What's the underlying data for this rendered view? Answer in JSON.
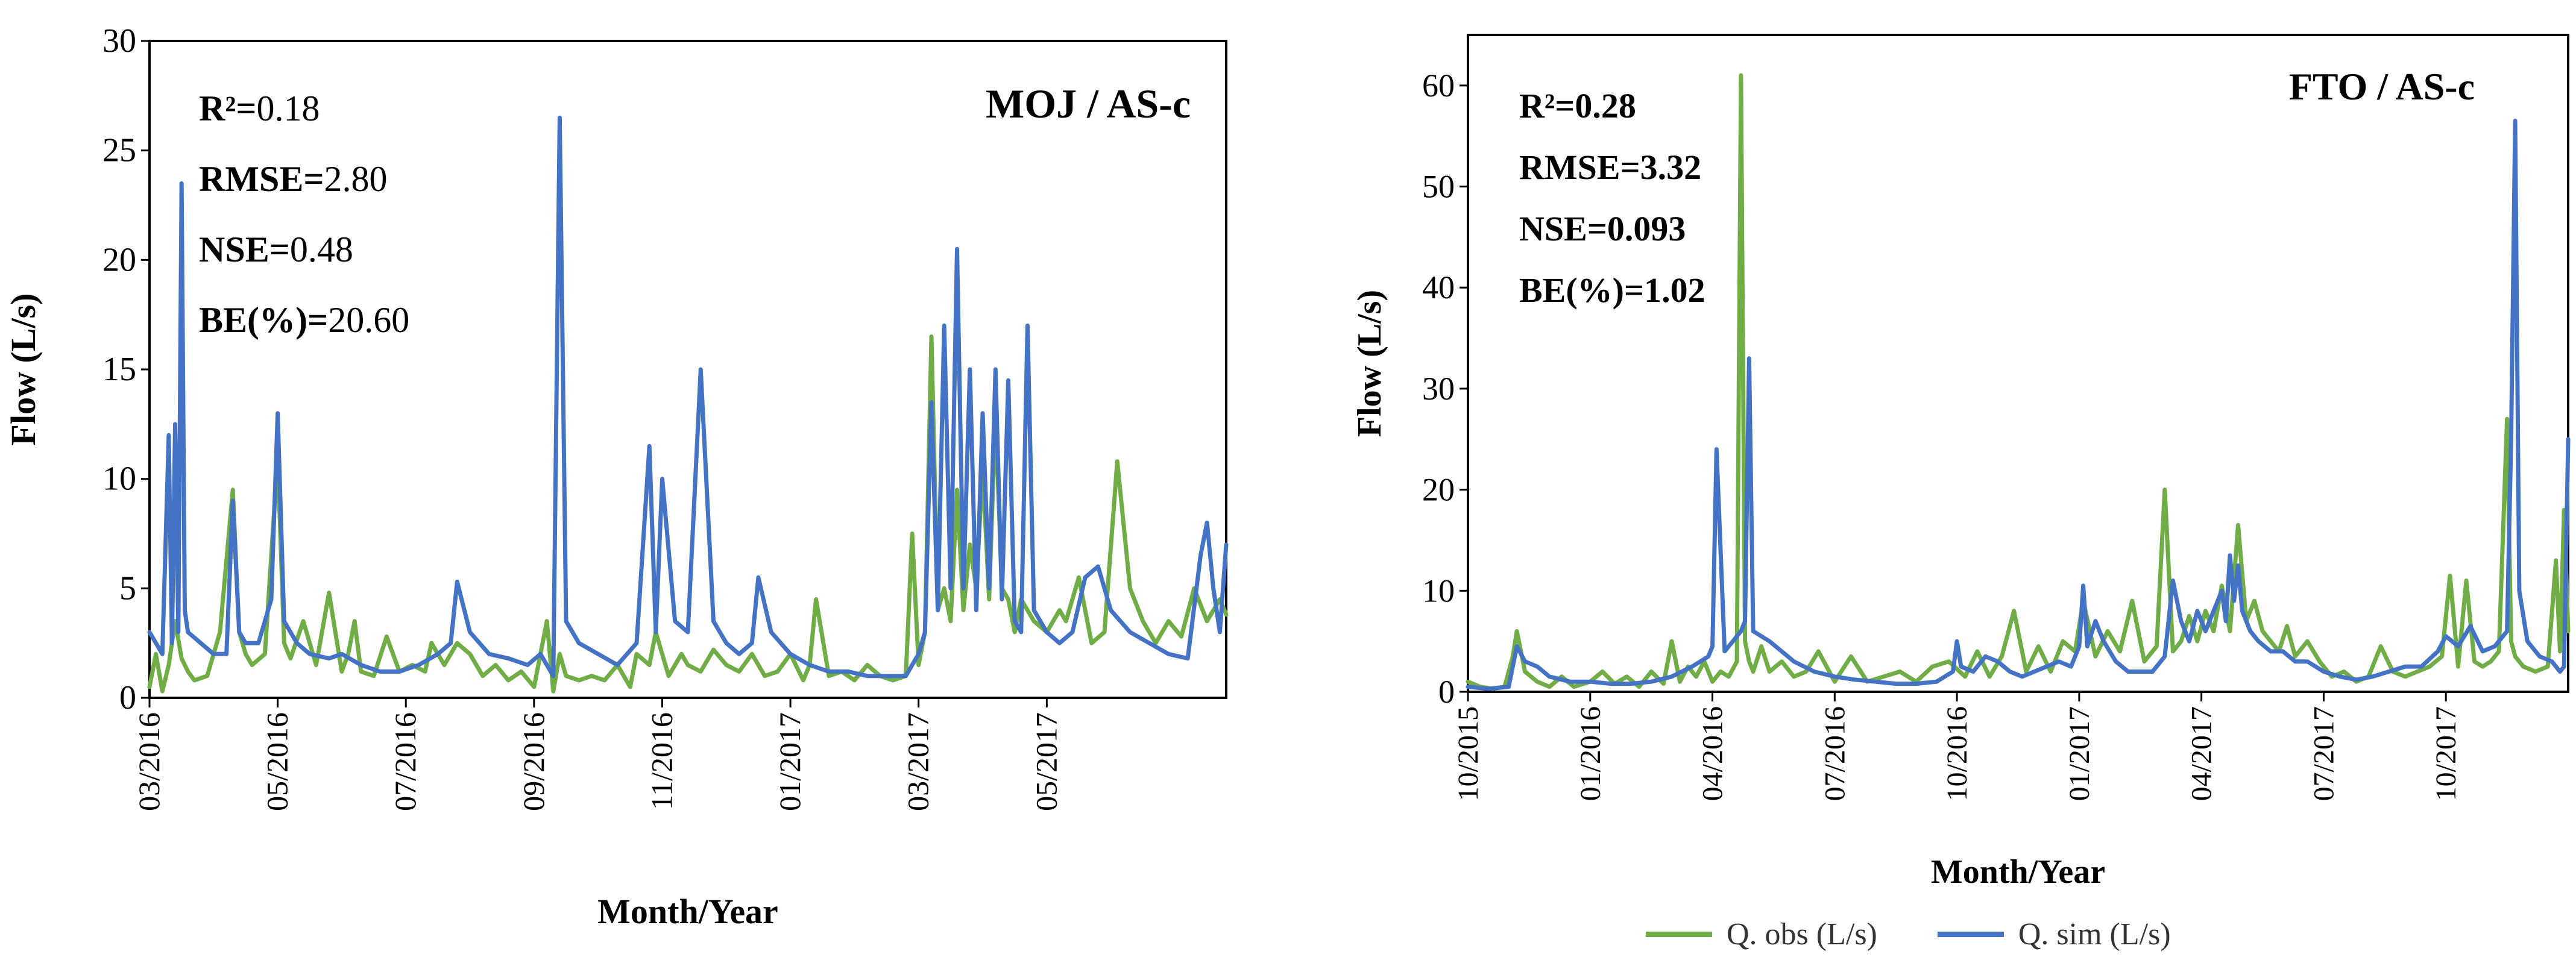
{
  "legend": {
    "obs_label": "Q. obs (L/s)",
    "sim_label": "Q. sim (L/s)"
  },
  "colors": {
    "obs": "#70ad47",
    "sim": "#4472c4",
    "axis": "#000000",
    "tick": "#595959"
  },
  "chart_data": [
    {
      "type": "line",
      "title": "MOJ / AS-c",
      "xlabel": "Month/Year",
      "ylabel": "Flow (L/s)",
      "ylim": [
        0,
        30
      ],
      "yticks": [
        0,
        5,
        10,
        15,
        20,
        25,
        30
      ],
      "xlim": [
        0,
        16.8
      ],
      "xtick_labels": [
        "03/2016",
        "05/2016",
        "07/2016",
        "09/2016",
        "11/2016",
        "01/2017",
        "03/2017",
        "05/2017"
      ],
      "xtick_positions": [
        0,
        2,
        4,
        6,
        8,
        10,
        12,
        14
      ],
      "stats": [
        {
          "label": "R²=",
          "value": "0.18"
        },
        {
          "label": "RMSE=",
          "value": "2.80"
        },
        {
          "label": "NSE=",
          "value": "0.48"
        },
        {
          "label": "BE(%)=",
          "value": "20.60"
        }
      ],
      "series": [
        {
          "name": "Q. obs (L/s)",
          "x": [
            0,
            0.1,
            0.2,
            0.3,
            0.4,
            0.5,
            0.6,
            0.7,
            0.9,
            1.1,
            1.3,
            1.4,
            1.5,
            1.6,
            1.8,
            2.0,
            2.1,
            2.2,
            2.4,
            2.6,
            2.8,
            3.0,
            3.1,
            3.2,
            3.3,
            3.5,
            3.7,
            3.9,
            4.1,
            4.3,
            4.4,
            4.6,
            4.8,
            5.0,
            5.2,
            5.4,
            5.6,
            5.8,
            6.0,
            6.2,
            6.3,
            6.4,
            6.5,
            6.7,
            6.9,
            7.1,
            7.3,
            7.5,
            7.6,
            7.8,
            7.9,
            8.1,
            8.3,
            8.4,
            8.6,
            8.8,
            9.0,
            9.2,
            9.4,
            9.6,
            9.8,
            10.0,
            10.2,
            10.3,
            10.4,
            10.6,
            10.8,
            11.0,
            11.2,
            11.4,
            11.6,
            11.8,
            11.9,
            12.0,
            12.1,
            12.2,
            12.3,
            12.4,
            12.5,
            12.6,
            12.7,
            12.8,
            12.9,
            13.0,
            13.1,
            13.2,
            13.3,
            13.4,
            13.5,
            13.6,
            13.8,
            14.0,
            14.2,
            14.3,
            14.5,
            14.7,
            14.9,
            15.1,
            15.3,
            15.5,
            15.7,
            15.9,
            16.1,
            16.3,
            16.5,
            16.7,
            16.8
          ],
          "values": [
            0.5,
            2.0,
            0.3,
            1.5,
            3.5,
            1.8,
            1.2,
            0.8,
            1.0,
            3.0,
            9.5,
            3.0,
            2.0,
            1.5,
            2.0,
            11.0,
            2.5,
            1.8,
            3.5,
            1.5,
            4.8,
            1.2,
            2.0,
            3.5,
            1.2,
            1.0,
            2.8,
            1.2,
            1.5,
            1.2,
            2.5,
            1.5,
            2.5,
            2.0,
            1.0,
            1.5,
            0.8,
            1.2,
            0.5,
            3.5,
            0.3,
            2.0,
            1.0,
            0.8,
            1.0,
            0.8,
            1.5,
            0.5,
            2.0,
            1.5,
            3.0,
            1.0,
            2.0,
            1.5,
            1.2,
            2.2,
            1.5,
            1.2,
            2.0,
            1.0,
            1.2,
            2.0,
            0.8,
            1.5,
            4.5,
            1.0,
            1.2,
            0.8,
            1.5,
            1.0,
            0.8,
            1.0,
            7.5,
            1.5,
            3.0,
            16.5,
            4.0,
            5.0,
            3.5,
            9.5,
            4.0,
            7.0,
            5.0,
            10.5,
            4.5,
            13.0,
            5.0,
            4.5,
            3.0,
            4.5,
            3.5,
            3.0,
            4.0,
            3.5,
            5.5,
            2.5,
            3.0,
            10.8,
            5.0,
            3.5,
            2.5,
            3.5,
            2.8,
            5.0,
            3.5,
            4.5,
            3.8
          ]
        },
        {
          "name": "Q. sim (L/s)",
          "x": [
            0,
            0.2,
            0.3,
            0.35,
            0.4,
            0.45,
            0.5,
            0.55,
            0.6,
            0.8,
            1.0,
            1.2,
            1.3,
            1.4,
            1.5,
            1.7,
            1.9,
            2.0,
            2.1,
            2.3,
            2.5,
            2.8,
            3.0,
            3.3,
            3.6,
            3.9,
            4.2,
            4.5,
            4.7,
            4.8,
            5.0,
            5.3,
            5.6,
            5.9,
            6.1,
            6.3,
            6.4,
            6.5,
            6.7,
            7.0,
            7.3,
            7.6,
            7.8,
            7.9,
            8.0,
            8.2,
            8.4,
            8.6,
            8.8,
            9.0,
            9.2,
            9.4,
            9.5,
            9.7,
            10.0,
            10.3,
            10.6,
            10.9,
            11.2,
            11.5,
            11.8,
            12.0,
            12.1,
            12.2,
            12.3,
            12.4,
            12.5,
            12.6,
            12.7,
            12.8,
            12.9,
            13.0,
            13.1,
            13.2,
            13.3,
            13.4,
            13.5,
            13.6,
            13.7,
            13.8,
            13.9,
            14.0,
            14.2,
            14.4,
            14.6,
            14.8,
            15.0,
            15.3,
            15.6,
            15.9,
            16.2,
            16.4,
            16.5,
            16.6,
            16.7,
            16.8
          ],
          "values": [
            3.0,
            2.0,
            12.0,
            2.5,
            12.5,
            3.0,
            23.5,
            4.0,
            3.0,
            2.5,
            2.0,
            2.0,
            9.0,
            3.0,
            2.5,
            2.5,
            4.5,
            13.0,
            3.5,
            2.5,
            2.0,
            1.8,
            2.0,
            1.5,
            1.2,
            1.2,
            1.5,
            2.0,
            2.5,
            5.3,
            3.0,
            2.0,
            1.8,
            1.5,
            2.0,
            1.0,
            26.5,
            3.5,
            2.5,
            2.0,
            1.5,
            2.5,
            11.5,
            3.0,
            10.0,
            3.5,
            3.0,
            15.0,
            3.5,
            2.5,
            2.0,
            2.5,
            5.5,
            3.0,
            2.0,
            1.5,
            1.2,
            1.2,
            1.0,
            1.0,
            1.0,
            2.0,
            3.0,
            13.5,
            4.0,
            17.0,
            5.0,
            20.5,
            5.0,
            15.0,
            4.0,
            13.0,
            5.0,
            15.0,
            4.5,
            14.5,
            3.5,
            3.0,
            17.0,
            4.0,
            3.5,
            3.0,
            2.5,
            3.0,
            5.5,
            6.0,
            4.0,
            3.0,
            2.5,
            2.0,
            1.8,
            6.5,
            8.0,
            5.0,
            3.0,
            7.0
          ]
        }
      ]
    },
    {
      "type": "line",
      "title": "FTO / AS-c",
      "xlabel": "Month/Year",
      "ylabel": "Flow (L/s)",
      "ylim": [
        0,
        65
      ],
      "yticks": [
        0,
        10,
        20,
        30,
        40,
        50,
        60
      ],
      "xlim": [
        0,
        27
      ],
      "xtick_labels": [
        "10/2015",
        "01/2016",
        "04/2016",
        "07/2016",
        "10/2016",
        "01/2017",
        "04/2017",
        "07/2017",
        "10/2017"
      ],
      "xtick_positions": [
        0,
        3,
        6,
        9,
        12,
        15,
        18,
        21,
        24
      ],
      "stats": [
        {
          "label": "R²=",
          "value": "0.28"
        },
        {
          "label": "RMSE=",
          "value": "3.32"
        },
        {
          "label": "NSE=",
          "value": "0.093"
        },
        {
          "label": "BE(%)=",
          "value": "1.02"
        }
      ],
      "series": [
        {
          "name": "Q. obs (L/s)",
          "x": [
            0,
            0.3,
            0.6,
            0.9,
            1.1,
            1.2,
            1.4,
            1.7,
            2.0,
            2.3,
            2.6,
            3.0,
            3.3,
            3.6,
            3.9,
            4.2,
            4.5,
            4.8,
            5.0,
            5.2,
            5.4,
            5.6,
            5.8,
            6.0,
            6.2,
            6.4,
            6.6,
            6.7,
            6.8,
            6.9,
            7.0,
            7.2,
            7.4,
            7.7,
            8.0,
            8.3,
            8.6,
            9.0,
            9.4,
            9.8,
            10.2,
            10.6,
            11.0,
            11.4,
            11.8,
            12.2,
            12.5,
            12.8,
            13.1,
            13.4,
            13.7,
            14.0,
            14.3,
            14.6,
            14.9,
            15.1,
            15.4,
            15.7,
            16.0,
            16.3,
            16.6,
            16.9,
            17.1,
            17.3,
            17.5,
            17.7,
            17.9,
            18.1,
            18.3,
            18.5,
            18.7,
            18.9,
            19.1,
            19.3,
            19.5,
            19.7,
            19.9,
            20.1,
            20.3,
            20.6,
            20.9,
            21.2,
            21.5,
            21.8,
            22.1,
            22.4,
            22.7,
            23.0,
            23.3,
            23.6,
            23.9,
            24.1,
            24.3,
            24.5,
            24.7,
            24.9,
            25.1,
            25.3,
            25.5,
            25.6,
            25.7,
            25.9,
            26.2,
            26.5,
            26.7,
            26.8,
            26.9,
            27.0
          ],
          "values": [
            1.0,
            0.5,
            0.3,
            0.5,
            3.5,
            6.0,
            2.0,
            1.0,
            0.5,
            1.5,
            0.5,
            1.0,
            2.0,
            0.8,
            1.5,
            0.5,
            2.0,
            0.8,
            5.0,
            1.0,
            2.5,
            1.5,
            3.0,
            1.0,
            2.0,
            1.5,
            3.0,
            61.0,
            5.0,
            3.0,
            2.0,
            4.5,
            2.0,
            3.0,
            1.5,
            2.0,
            4.0,
            1.0,
            3.5,
            1.0,
            1.5,
            2.0,
            1.0,
            2.5,
            3.0,
            1.5,
            4.0,
            1.5,
            3.5,
            8.0,
            2.0,
            4.5,
            2.0,
            5.0,
            4.0,
            9.0,
            3.5,
            6.0,
            4.0,
            9.0,
            3.0,
            4.5,
            20.0,
            4.0,
            5.0,
            7.5,
            5.0,
            8.0,
            6.0,
            10.5,
            6.0,
            16.5,
            7.0,
            9.0,
            6.0,
            5.0,
            4.0,
            6.5,
            3.5,
            5.0,
            3.0,
            1.5,
            2.0,
            1.0,
            1.5,
            4.5,
            2.0,
            1.5,
            2.0,
            2.5,
            3.5,
            11.5,
            2.5,
            11.0,
            3.0,
            2.5,
            3.0,
            4.0,
            27.0,
            5.0,
            3.5,
            2.5,
            2.0,
            2.5,
            13.0,
            4.0,
            18.0,
            6.0
          ]
        },
        {
          "name": "Q. sim (L/s)",
          "x": [
            0,
            0.5,
            1.0,
            1.2,
            1.4,
            1.7,
            2.0,
            2.5,
            3.0,
            3.5,
            4.0,
            4.5,
            5.0,
            5.5,
            5.9,
            6.0,
            6.1,
            6.3,
            6.5,
            6.7,
            6.8,
            6.9,
            7.0,
            7.2,
            7.4,
            7.7,
            8.0,
            8.5,
            9.0,
            9.5,
            10.0,
            10.5,
            11.0,
            11.5,
            11.9,
            12.0,
            12.1,
            12.4,
            12.7,
            13.0,
            13.3,
            13.6,
            13.9,
            14.2,
            14.5,
            14.8,
            15.0,
            15.1,
            15.2,
            15.4,
            15.6,
            15.9,
            16.2,
            16.5,
            16.8,
            17.1,
            17.3,
            17.5,
            17.7,
            17.9,
            18.1,
            18.3,
            18.5,
            18.6,
            18.7,
            18.8,
            18.9,
            19.0,
            19.2,
            19.4,
            19.7,
            20.0,
            20.3,
            20.6,
            21.0,
            21.4,
            21.8,
            22.2,
            22.6,
            23.0,
            23.4,
            23.8,
            24.0,
            24.3,
            24.6,
            24.9,
            25.2,
            25.5,
            25.6,
            25.7,
            25.8,
            26.0,
            26.3,
            26.6,
            26.8,
            26.9,
            27.0
          ],
          "values": [
            0.5,
            0.3,
            0.5,
            4.5,
            3.0,
            2.5,
            1.5,
            1.0,
            1.0,
            0.8,
            0.8,
            1.0,
            1.5,
            2.5,
            3.5,
            4.5,
            24.0,
            4.0,
            5.0,
            6.0,
            7.0,
            33.0,
            6.0,
            5.5,
            5.0,
            4.0,
            3.0,
            2.0,
            1.5,
            1.2,
            1.0,
            0.8,
            0.8,
            1.0,
            2.0,
            5.0,
            2.5,
            2.0,
            3.5,
            3.0,
            2.0,
            1.5,
            2.0,
            2.5,
            3.0,
            2.5,
            4.5,
            10.5,
            4.5,
            7.0,
            5.0,
            3.0,
            2.0,
            2.0,
            2.0,
            3.5,
            11.0,
            7.0,
            5.0,
            8.0,
            6.0,
            8.0,
            10.0,
            7.0,
            13.5,
            9.0,
            12.5,
            8.0,
            6.0,
            5.0,
            4.0,
            4.0,
            3.0,
            3.0,
            2.0,
            1.5,
            1.2,
            1.5,
            2.0,
            2.5,
            2.5,
            4.0,
            5.5,
            4.5,
            6.5,
            4.0,
            4.5,
            6.0,
            25.0,
            56.5,
            10.0,
            5.0,
            3.5,
            3.0,
            2.0,
            2.5,
            25.0
          ]
        }
      ]
    }
  ]
}
